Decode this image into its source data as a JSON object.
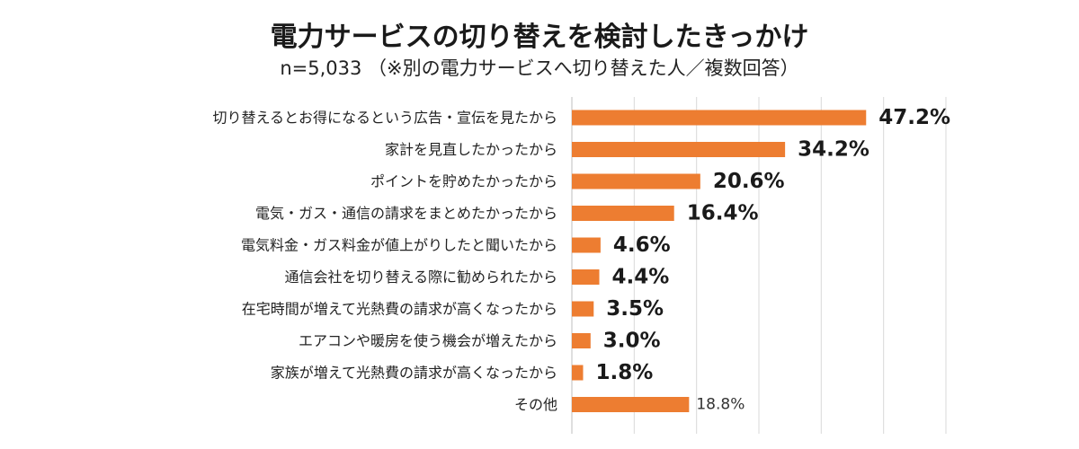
{
  "chart_data": {
    "type": "bar",
    "orientation": "horizontal",
    "title": "電力サービスの切り替えを検討したきっかけ",
    "subtitle": "n=5,033 （※別の電力サービスへ切り替えた人／複数回答）",
    "categories": [
      "切り替えるとお得になるという広告・宣伝を見たから",
      "家計を見直したかったから",
      "ポイントを貯めたかったから",
      "電気・ガス・通信の請求をまとめたかったから",
      "電気料金・ガス料金が値上がりしたと聞いたから",
      "通信会社を切り替える際に勧められたから",
      "在宅時間が増えて光熱費の請求が高くなったから",
      "エアコンや暖房を使う機会が増えたから",
      "家族が増えて光熱費の請求が高くなったから",
      "その他"
    ],
    "values": [
      47.2,
      34.2,
      20.6,
      16.4,
      4.6,
      4.4,
      3.5,
      3.0,
      1.8,
      18.8
    ],
    "value_labels": [
      "47.2%",
      "34.2%",
      "20.6%",
      "16.4%",
      "4.6%",
      "4.4%",
      "3.5%",
      "3.0%",
      "1.8%",
      "18.8%"
    ],
    "xlim": [
      0,
      60
    ],
    "grid": true,
    "bar_color": "#ED7D31",
    "grid_color": "#D9D9D9"
  }
}
